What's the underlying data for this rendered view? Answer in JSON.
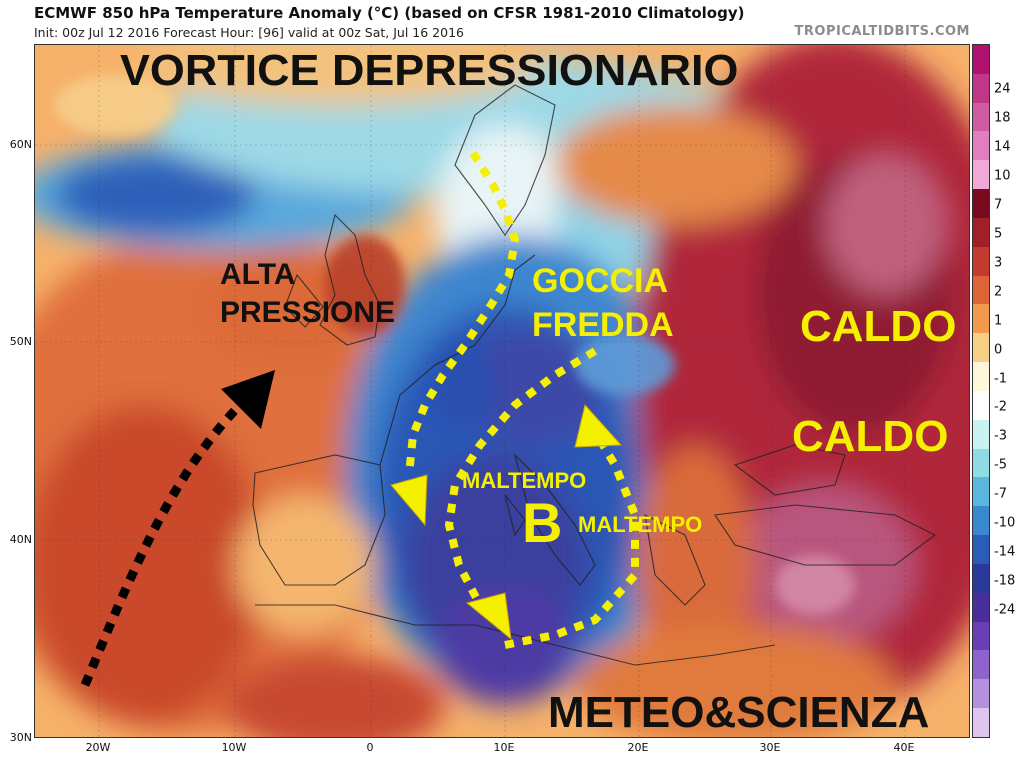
{
  "header": {
    "title": "ECMWF 850 hPa Temperature Anomaly (°C) (based on CFSR 1981-2010 Climatology)",
    "subtitle": "Init: 00z Jul 12 2016   Forecast Hour: [96]   valid at 00z Sat, Jul 16 2016",
    "credit": "TROPICALTIDBITS.COM"
  },
  "map": {
    "lat_labels": [
      "60N",
      "50N",
      "40N",
      "30N"
    ],
    "lon_labels": [
      "20W",
      "10W",
      "0",
      "10E",
      "20E",
      "30E",
      "40E"
    ]
  },
  "colorbar": {
    "ticks": [
      "24",
      "18",
      "14",
      "10",
      "7",
      "5",
      "3",
      "2",
      "1",
      "0",
      "-1",
      "-2",
      "-3",
      "-5",
      "-7",
      "-10",
      "-14",
      "-18",
      "-24"
    ],
    "colors": [
      "#b0136f",
      "#c0378a",
      "#cf5ca3",
      "#e07fbe",
      "#f0a8d6",
      "#7a0b1e",
      "#a21f27",
      "#c33a2e",
      "#dd6436",
      "#f29a4d",
      "#f8cf86",
      "#fff7da",
      "#ffffff",
      "#c9f2f3",
      "#8fdce4",
      "#5bb5dc",
      "#3a88cf",
      "#2a5cb8",
      "#2b3a9a",
      "#4a2e9c",
      "#6a3fb5",
      "#8e64cc",
      "#b491de",
      "#dcc6ee"
    ]
  },
  "annotations": {
    "vortice": "VORTICE DEPRESSIONARIO",
    "alta_line1": "ALTA",
    "alta_line2": "PRESSIONE",
    "goccia_line1": "GOCCIA",
    "goccia_line2": "FREDDA",
    "caldo_1": "CALDO",
    "caldo_2": "CALDO",
    "maltempo_1": "MALTEMPO",
    "maltempo_2": "MALTEMPO",
    "low_symbol": "B",
    "watermark": "METEO&SCIENZA"
  }
}
